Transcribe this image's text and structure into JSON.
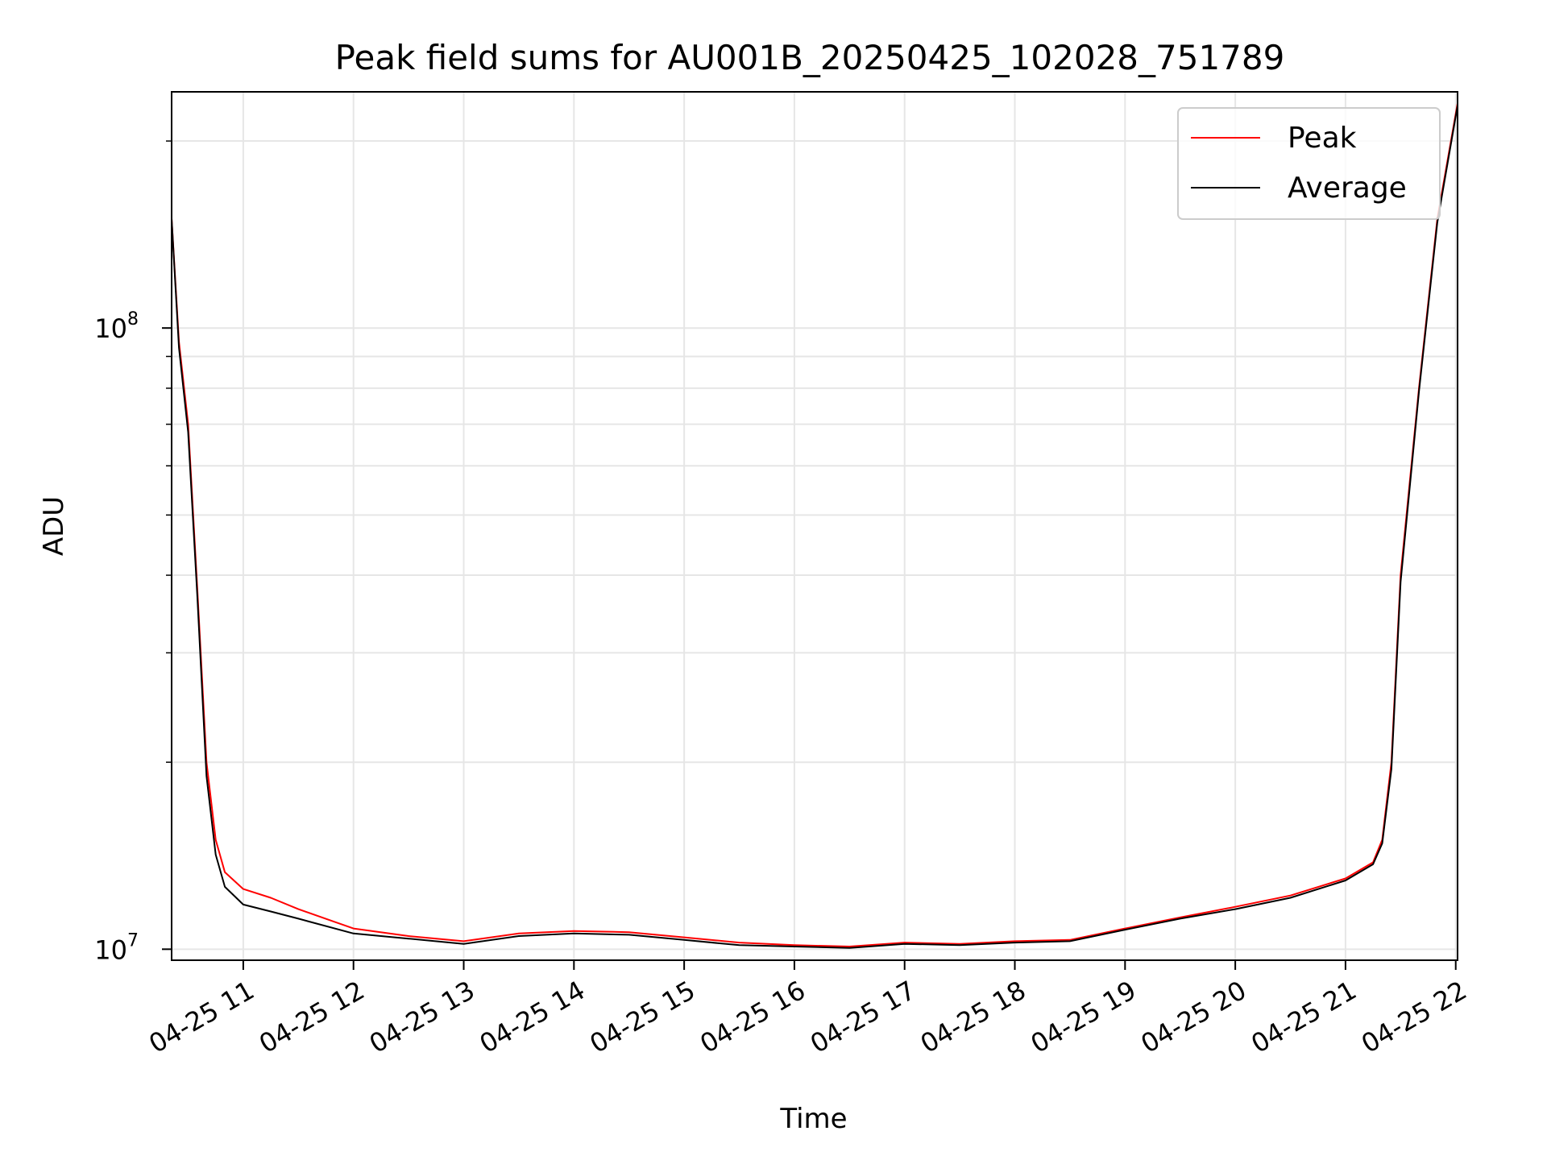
{
  "chart_data": {
    "type": "line",
    "title": "Peak field sums for AU001B_20250425_102028_751789",
    "xlabel": "Time",
    "ylabel": "ADU",
    "y_scale": "log",
    "ylim": [
      9600000,
      240000000
    ],
    "xlim": [
      "2025-04-25 10:21",
      "2025-04-25 22:01"
    ],
    "grid": true,
    "legend_position": "top-right",
    "x_ticks": [
      {
        "value": "2025-04-25 11:00",
        "label": "04-25 11"
      },
      {
        "value": "2025-04-25 12:00",
        "label": "04-25 12"
      },
      {
        "value": "2025-04-25 13:00",
        "label": "04-25 13"
      },
      {
        "value": "2025-04-25 14:00",
        "label": "04-25 14"
      },
      {
        "value": "2025-04-25 15:00",
        "label": "04-25 15"
      },
      {
        "value": "2025-04-25 16:00",
        "label": "04-25 16"
      },
      {
        "value": "2025-04-25 17:00",
        "label": "04-25 17"
      },
      {
        "value": "2025-04-25 18:00",
        "label": "04-25 18"
      },
      {
        "value": "2025-04-25 19:00",
        "label": "04-25 19"
      },
      {
        "value": "2025-04-25 20:00",
        "label": "04-25 20"
      },
      {
        "value": "2025-04-25 21:00",
        "label": "04-25 21"
      },
      {
        "value": "2025-04-25 22:00",
        "label": "04-25 22"
      }
    ],
    "y_ticks": [
      {
        "value": 10000000,
        "base": "10",
        "exp": "7"
      },
      {
        "value": 100000000,
        "base": "10",
        "exp": "8"
      }
    ],
    "series": [
      {
        "name": "Peak",
        "color": "#ff0000",
        "x": [
          "2025-04-25 10:21",
          "2025-04-25 10:25",
          "2025-04-25 10:30",
          "2025-04-25 10:35",
          "2025-04-25 10:40",
          "2025-04-25 10:45",
          "2025-04-25 10:50",
          "2025-04-25 11:00",
          "2025-04-25 11:15",
          "2025-04-25 11:30",
          "2025-04-25 12:00",
          "2025-04-25 12:30",
          "2025-04-25 13:00",
          "2025-04-25 13:30",
          "2025-04-25 14:00",
          "2025-04-25 14:30",
          "2025-04-25 15:00",
          "2025-04-25 15:30",
          "2025-04-25 16:00",
          "2025-04-25 16:30",
          "2025-04-25 17:00",
          "2025-04-25 17:30",
          "2025-04-25 18:00",
          "2025-04-25 18:30",
          "2025-04-25 19:00",
          "2025-04-25 19:30",
          "2025-04-25 20:00",
          "2025-04-25 20:30",
          "2025-04-25 21:00",
          "2025-04-25 21:15",
          "2025-04-25 21:20",
          "2025-04-25 21:25",
          "2025-04-25 21:30",
          "2025-04-25 21:40",
          "2025-04-25 21:50",
          "2025-04-25 22:01"
        ],
        "y": [
          150000000,
          95000000,
          70000000,
          38000000,
          20000000,
          15000000,
          13300000,
          12500000,
          12100000,
          11600000,
          10800000,
          10500000,
          10300000,
          10600000,
          10700000,
          10650000,
          10450000,
          10250000,
          10150000,
          10100000,
          10250000,
          10200000,
          10300000,
          10350000,
          10800000,
          11250000,
          11700000,
          12200000,
          13000000,
          13800000,
          15000000,
          20000000,
          40000000,
          80000000,
          150000000,
          230000000
        ]
      },
      {
        "name": "Average",
        "color": "#000000",
        "x": [
          "2025-04-25 10:21",
          "2025-04-25 10:25",
          "2025-04-25 10:30",
          "2025-04-25 10:35",
          "2025-04-25 10:40",
          "2025-04-25 10:45",
          "2025-04-25 10:50",
          "2025-04-25 11:00",
          "2025-04-25 11:15",
          "2025-04-25 11:30",
          "2025-04-25 12:00",
          "2025-04-25 12:30",
          "2025-04-25 13:00",
          "2025-04-25 13:30",
          "2025-04-25 14:00",
          "2025-04-25 14:30",
          "2025-04-25 15:00",
          "2025-04-25 15:30",
          "2025-04-25 16:00",
          "2025-04-25 16:30",
          "2025-04-25 17:00",
          "2025-04-25 17:30",
          "2025-04-25 18:00",
          "2025-04-25 18:30",
          "2025-04-25 19:00",
          "2025-04-25 19:30",
          "2025-04-25 20:00",
          "2025-04-25 20:30",
          "2025-04-25 21:00",
          "2025-04-25 21:15",
          "2025-04-25 21:20",
          "2025-04-25 21:25",
          "2025-04-25 21:30",
          "2025-04-25 21:40",
          "2025-04-25 21:50",
          "2025-04-25 22:01"
        ],
        "y": [
          150000000,
          93000000,
          68000000,
          37000000,
          19000000,
          14200000,
          12600000,
          11800000,
          11500000,
          11200000,
          10600000,
          10400000,
          10200000,
          10500000,
          10600000,
          10550000,
          10350000,
          10150000,
          10100000,
          10050000,
          10200000,
          10150000,
          10250000,
          10300000,
          10750000,
          11200000,
          11600000,
          12100000,
          12900000,
          13700000,
          14800000,
          19500000,
          39000000,
          79000000,
          148000000,
          228000000
        ]
      }
    ]
  }
}
